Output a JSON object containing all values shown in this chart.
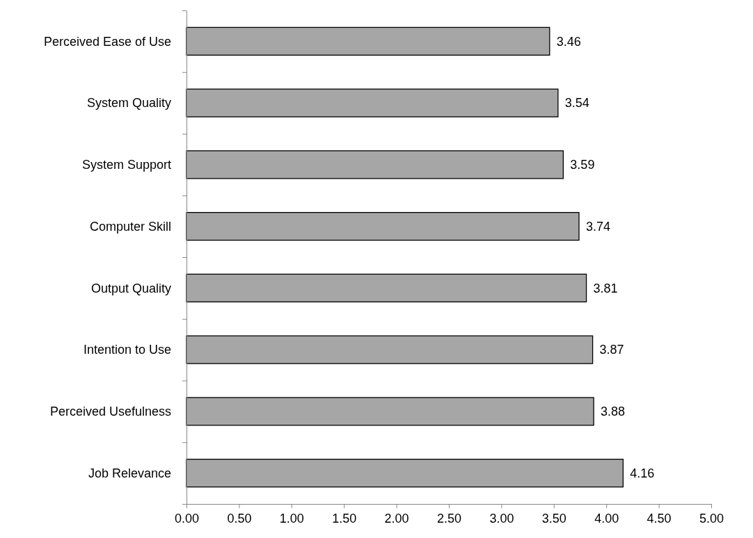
{
  "chart_data": {
    "type": "bar",
    "orientation": "horizontal",
    "categories": [
      "Perceived Ease of Use",
      "System Quality",
      "System Support",
      "Computer Skill",
      "Output Quality",
      "Intention to Use",
      "Perceived Usefulness",
      "Job Relevance"
    ],
    "values": [
      3.46,
      3.54,
      3.59,
      3.74,
      3.81,
      3.87,
      3.88,
      4.16
    ],
    "color": "#a6a6a6",
    "xlim": [
      0,
      5
    ],
    "xticks": [
      {
        "value": 0,
        "label": "0.00"
      },
      {
        "value": 0.5,
        "label": "0.50"
      },
      {
        "value": 1,
        "label": "1.00"
      },
      {
        "value": 1.5,
        "label": "1.50"
      },
      {
        "value": 2,
        "label": "2.00"
      },
      {
        "value": 2.5,
        "label": "2.50"
      },
      {
        "value": 3,
        "label": "3.00"
      },
      {
        "value": 3.5,
        "label": "3.50"
      },
      {
        "value": 4,
        "label": "4.00"
      },
      {
        "value": 4.5,
        "label": "4.50"
      },
      {
        "value": 5,
        "label": "5.00"
      }
    ],
    "data_labels": true
  }
}
